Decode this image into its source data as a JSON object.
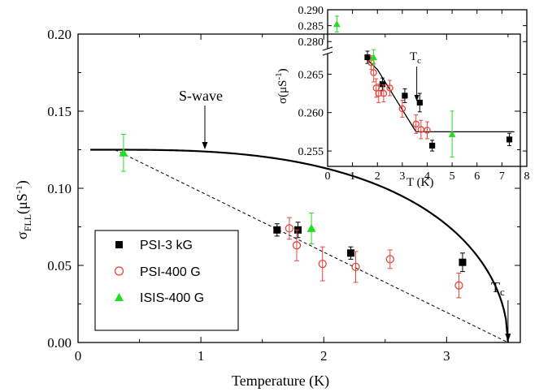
{
  "chart_data": [
    {
      "type": "scatter",
      "xlabel": "Temperature (K)",
      "ylabel_base": "σ",
      "ylabel_sub": "FLL",
      "ylabel_unit_pre": "(μS",
      "ylabel_unit_sup": "-1",
      "ylabel_unit_post": ")",
      "xlim": [
        0,
        3.6
      ],
      "ylim": [
        0,
        0.2
      ],
      "xticks": [
        "0",
        "1",
        "2",
        "3"
      ],
      "yticks": [
        "0.00",
        "0.05",
        "0.10",
        "0.15",
        "0.20"
      ],
      "legend": {
        "placement": "lower-left"
      },
      "series": [
        {
          "name": "PSI-3 kG",
          "marker": "square",
          "color": "#000000",
          "points": [
            [
              1.62,
              0.073,
              0.004
            ],
            [
              1.79,
              0.073,
              0.005
            ],
            [
              2.22,
              0.058,
              0.004
            ],
            [
              3.13,
              0.052,
              0.006
            ]
          ]
        },
        {
          "name": "PSI-400 G",
          "marker": "circle",
          "color": "#e8443a",
          "points": [
            [
              1.72,
              0.074,
              0.007
            ],
            [
              1.78,
              0.063,
              0.01
            ],
            [
              1.99,
              0.051,
              0.011
            ],
            [
              2.26,
              0.049,
              0.01
            ],
            [
              2.54,
              0.054,
              0.006
            ],
            [
              3.1,
              0.037,
              0.008
            ]
          ]
        },
        {
          "name": "ISIS-400 G",
          "marker": "triangle",
          "color": "#22dd22",
          "points": [
            [
              0.37,
              0.123,
              0.012
            ],
            [
              1.9,
              0.074,
              0.01
            ]
          ]
        }
      ],
      "fit_swave": {
        "label": "S-wave",
        "s0": 0.125,
        "tc": 3.5
      },
      "fit_linear": {
        "from": [
          0.3,
          0.125
        ],
        "to": [
          3.5,
          0.0
        ]
      },
      "tc_label": "T",
      "tc_sub": "c"
    },
    {
      "type": "scatter",
      "xlabel": "T (K)",
      "ylabel_base": "σ(μS",
      "ylabel_unit_sup": "-1",
      "ylabel_unit_post": ")",
      "xlim": [
        0,
        8
      ],
      "ylim": [
        0.253,
        0.29
      ],
      "xticks": [
        "0",
        "1",
        "2",
        "3",
        "4",
        "5",
        "6",
        "7",
        "8"
      ],
      "yticks": [
        "0.255",
        "0.260",
        "0.265",
        "0.280",
        "0.285",
        "0.290"
      ],
      "axis_break": true,
      "series": [
        {
          "name": "PSI-3 kG",
          "marker": "square",
          "color": "#000000",
          "points": [
            [
              1.6,
              0.2672,
              0.0008
            ],
            [
              2.2,
              0.2637,
              0.0008
            ],
            [
              3.1,
              0.2622,
              0.0009
            ],
            [
              3.7,
              0.2613,
              0.0012
            ],
            [
              4.2,
              0.2557,
              0.0007
            ],
            [
              7.3,
              0.2565,
              0.0008
            ]
          ]
        },
        {
          "name": "PSI-400 G",
          "marker": "circle",
          "color": "#e8443a",
          "points": [
            [
              1.75,
              0.2665,
              0.0009
            ],
            [
              1.85,
              0.2652,
              0.0012
            ],
            [
              1.95,
              0.2632,
              0.0012
            ],
            [
              2.05,
              0.2625,
              0.0012
            ],
            [
              2.25,
              0.2625,
              0.0011
            ],
            [
              2.5,
              0.2632,
              0.001
            ],
            [
              3.0,
              0.2605,
              0.0011
            ],
            [
              3.55,
              0.2585,
              0.0012
            ],
            [
              3.75,
              0.2578,
              0.0012
            ],
            [
              4.0,
              0.2577,
              0.0011
            ]
          ]
        },
        {
          "name": "ISIS-400 G",
          "marker": "triangle",
          "color": "#22dd22",
          "points": [
            [
              0.37,
              0.2855,
              0.0025
            ],
            [
              1.85,
              0.2672,
              0.001
            ],
            [
              5.0,
              0.2572,
              0.003
            ]
          ]
        }
      ],
      "fit_line": [
        [
          1.5,
          0.2672
        ],
        [
          2.0,
          0.2656
        ],
        [
          3.55,
          0.2575
        ],
        [
          7.5,
          0.2575
        ]
      ],
      "tc_label": "T",
      "tc_sub": "c"
    }
  ]
}
